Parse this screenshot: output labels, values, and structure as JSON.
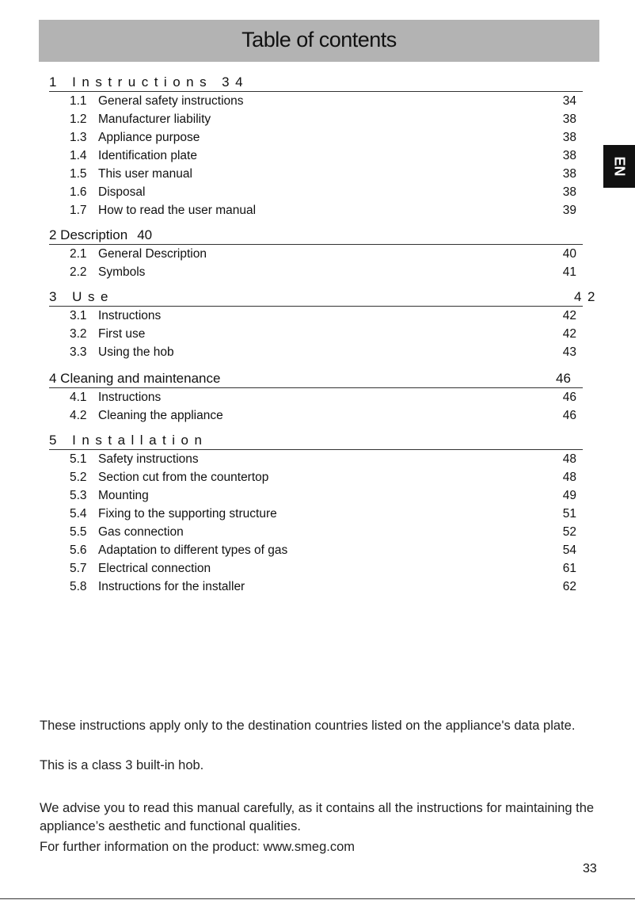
{
  "title": "Table of contents",
  "lang_tab": "EN",
  "sections": [
    {
      "heading": "1 Instructions",
      "page": "34",
      "entries": [
        {
          "num": "1.1",
          "title": "General safety instructions",
          "page": "34"
        },
        {
          "num": "1.2",
          "title": "Manufacturer liability",
          "page": "38"
        },
        {
          "num": "1.3",
          "title": "Appliance purpose",
          "page": "38"
        },
        {
          "num": "1.4",
          "title": "Identification plate",
          "page": "38"
        },
        {
          "num": "1.5",
          "title": "This user manual",
          "page": "38"
        },
        {
          "num": "1.6",
          "title": "Disposal",
          "page": "38"
        },
        {
          "num": "1.7",
          "title": "How to read the user manual",
          "page": "39"
        }
      ]
    },
    {
      "heading": "2 Description",
      "page": "40",
      "entries": [
        {
          "num": "2.1",
          "title": "General Description",
          "page": "40"
        },
        {
          "num": "2.2",
          "title": "Symbols",
          "page": "41"
        }
      ]
    },
    {
      "heading": "3 Use",
      "page": "42",
      "entries": [
        {
          "num": "3.1",
          "title": "Instructions",
          "page": "42"
        },
        {
          "num": "3.2",
          "title": "First use",
          "page": "42"
        },
        {
          "num": "3.3",
          "title": "Using the hob",
          "page": "43"
        }
      ]
    },
    {
      "heading": "4 Cleaning and maintenance",
      "page": "46",
      "entries": [
        {
          "num": "4.1",
          "title": "Instructions",
          "page": "46"
        },
        {
          "num": "4.2",
          "title": "Cleaning the appliance",
          "page": "46"
        }
      ]
    },
    {
      "heading": "5 Installation",
      "entries": [
        {
          "num": "5.1",
          "title": "Safety instructions",
          "page": "48"
        },
        {
          "num": "5.2",
          "title": "Section cut from the countertop",
          "page": "48"
        },
        {
          "num": "5.3",
          "title": "Mounting",
          "page": "49"
        },
        {
          "num": "5.4",
          "title": "Fixing to the supporting structure",
          "page": "51"
        },
        {
          "num": "5.5",
          "title": "Gas connection",
          "page": "52"
        },
        {
          "num": "5.6",
          "title": "Adaptation to different types of gas",
          "page": "54"
        },
        {
          "num": "5.7",
          "title": "Electrical connection",
          "page": "61"
        },
        {
          "num": "5.8",
          "title": "Instructions for the installer",
          "page": "62"
        }
      ]
    }
  ],
  "footer": {
    "p1": "These instructions apply only to the destination countries listed on the appliance's data plate.",
    "p2": "This is a class 3 built-in hob.",
    "p3": "We advise you to read this manual carefully, as it contains all the instructions for maintaining the appliance’s aesthetic and functional qualities.",
    "p4": "For further information on the product: www.smeg.com"
  },
  "page_number": "33"
}
